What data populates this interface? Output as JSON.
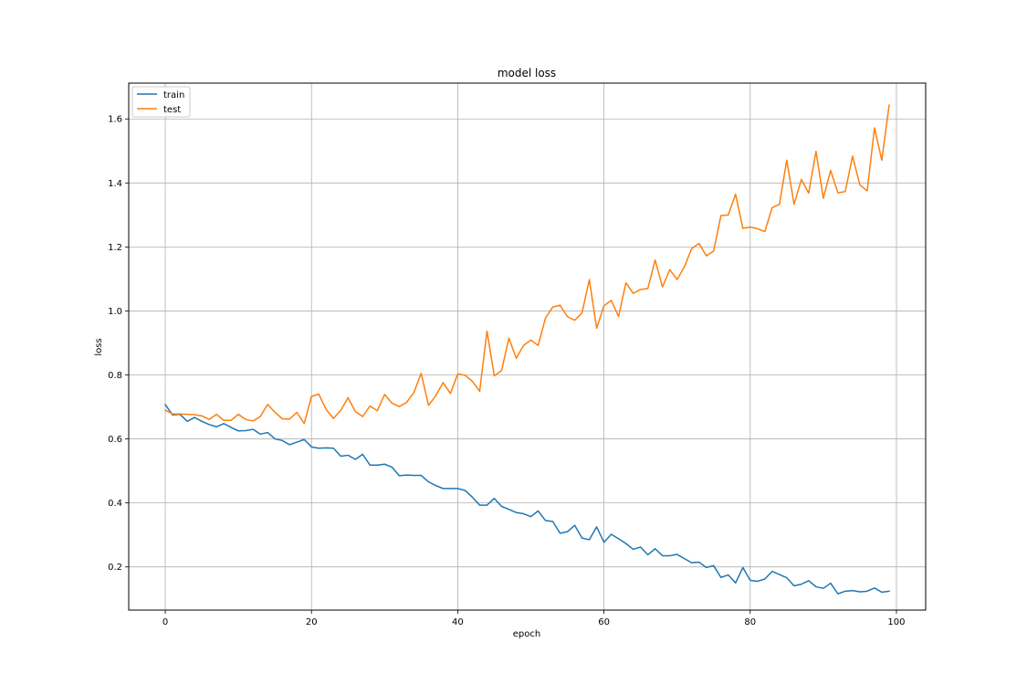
{
  "chart_data": {
    "type": "line",
    "title": "model loss",
    "xlabel": "epoch",
    "ylabel": "loss",
    "xlim": [
      -5,
      104
    ],
    "ylim": [
      0.065,
      1.712
    ],
    "xticks": [
      0,
      20,
      40,
      60,
      80,
      100
    ],
    "yticks": [
      0.2,
      0.4,
      0.6,
      0.8,
      1.0,
      1.2,
      1.4,
      1.6
    ],
    "xtick_labels": [
      "0",
      "20",
      "40",
      "60",
      "80",
      "100"
    ],
    "ytick_labels": [
      "0.2",
      "0.4",
      "0.6",
      "0.8",
      "1.0",
      "1.2",
      "1.4",
      "1.6"
    ],
    "grid": true,
    "legend_position": "upper-left",
    "x": [
      0,
      1,
      2,
      3,
      4,
      5,
      6,
      7,
      8,
      9,
      10,
      11,
      12,
      13,
      14,
      15,
      16,
      17,
      18,
      19,
      20,
      21,
      22,
      23,
      24,
      25,
      26,
      27,
      28,
      29,
      30,
      31,
      32,
      33,
      34,
      35,
      36,
      37,
      38,
      39,
      40,
      41,
      42,
      43,
      44,
      45,
      46,
      47,
      48,
      49,
      50,
      51,
      52,
      53,
      54,
      55,
      56,
      57,
      58,
      59,
      60,
      61,
      62,
      63,
      64,
      65,
      66,
      67,
      68,
      69,
      70,
      71,
      72,
      73,
      74,
      75,
      76,
      77,
      78,
      79,
      80,
      81,
      82,
      83,
      84,
      85,
      86,
      87,
      88,
      89,
      90,
      91,
      92,
      93,
      94,
      95,
      96,
      97,
      98,
      99
    ],
    "series": [
      {
        "name": "train",
        "color": "#1f77b4",
        "values": [
          0.707,
          0.675,
          0.677,
          0.655,
          0.667,
          0.655,
          0.645,
          0.638,
          0.648,
          0.636,
          0.625,
          0.626,
          0.63,
          0.615,
          0.62,
          0.6,
          0.595,
          0.582,
          0.59,
          0.598,
          0.575,
          0.571,
          0.572,
          0.571,
          0.546,
          0.549,
          0.536,
          0.552,
          0.518,
          0.518,
          0.521,
          0.512,
          0.485,
          0.487,
          0.486,
          0.486,
          0.466,
          0.454,
          0.445,
          0.445,
          0.445,
          0.439,
          0.418,
          0.393,
          0.393,
          0.414,
          0.389,
          0.38,
          0.37,
          0.366,
          0.357,
          0.375,
          0.345,
          0.342,
          0.305,
          0.31,
          0.33,
          0.29,
          0.285,
          0.325,
          0.277,
          0.302,
          0.288,
          0.273,
          0.255,
          0.262,
          0.238,
          0.257,
          0.235,
          0.235,
          0.239,
          0.226,
          0.213,
          0.215,
          0.198,
          0.204,
          0.167,
          0.175,
          0.15,
          0.198,
          0.158,
          0.155,
          0.162,
          0.186,
          0.176,
          0.166,
          0.141,
          0.146,
          0.157,
          0.138,
          0.133,
          0.149,
          0.116,
          0.124,
          0.126,
          0.122,
          0.124,
          0.134,
          0.121,
          0.124
        ]
      },
      {
        "name": "test",
        "color": "#ff7f0e",
        "values": [
          0.69,
          0.678,
          0.678,
          0.677,
          0.676,
          0.672,
          0.661,
          0.677,
          0.658,
          0.658,
          0.677,
          0.661,
          0.656,
          0.67,
          0.708,
          0.683,
          0.663,
          0.662,
          0.683,
          0.648,
          0.733,
          0.74,
          0.692,
          0.664,
          0.689,
          0.729,
          0.685,
          0.67,
          0.703,
          0.688,
          0.739,
          0.712,
          0.701,
          0.714,
          0.745,
          0.805,
          0.705,
          0.735,
          0.776,
          0.742,
          0.803,
          0.799,
          0.78,
          0.749,
          0.937,
          0.797,
          0.814,
          0.915,
          0.852,
          0.892,
          0.909,
          0.892,
          0.978,
          1.012,
          1.018,
          0.982,
          0.971,
          0.994,
          1.098,
          0.946,
          1.016,
          1.033,
          0.982,
          1.088,
          1.055,
          1.067,
          1.07,
          1.159,
          1.075,
          1.129,
          1.098,
          1.138,
          1.195,
          1.211,
          1.172,
          1.187,
          1.298,
          1.3,
          1.365,
          1.258,
          1.262,
          1.257,
          1.248,
          1.323,
          1.333,
          1.471,
          1.333,
          1.411,
          1.368,
          1.499,
          1.352,
          1.439,
          1.369,
          1.373,
          1.484,
          1.394,
          1.375,
          1.572,
          1.471,
          1.643
        ]
      }
    ]
  }
}
